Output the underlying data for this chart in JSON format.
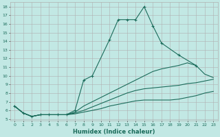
{
  "xlabel": "Humidex (Indice chaleur)",
  "background_color": "#c2e8e4",
  "grid_color": "#b0b0b0",
  "line_color": "#1a6b5a",
  "xlim": [
    -0.5,
    23.5
  ],
  "ylim": [
    4.8,
    18.5
  ],
  "xticks": [
    0,
    1,
    2,
    3,
    4,
    5,
    6,
    7,
    8,
    9,
    10,
    11,
    12,
    13,
    14,
    15,
    16,
    17,
    18,
    19,
    20,
    21,
    22,
    23
  ],
  "yticks": [
    5,
    6,
    7,
    8,
    9,
    10,
    11,
    12,
    13,
    14,
    15,
    16,
    17,
    18
  ],
  "series": [
    {
      "x": [
        0,
        1,
        2,
        3,
        4,
        5,
        6,
        7,
        8,
        9,
        11,
        12,
        13,
        14,
        15,
        16,
        17,
        19,
        21
      ],
      "y": [
        6.5,
        5.7,
        5.3,
        5.5,
        5.5,
        5.5,
        5.5,
        6.0,
        9.5,
        10.0,
        14.2,
        16.5,
        16.5,
        16.5,
        18.0,
        15.8,
        13.8,
        12.4,
        11.2
      ],
      "marker": true
    },
    {
      "x": [
        0,
        1,
        2,
        3,
        4,
        5,
        6,
        7,
        8,
        9,
        10,
        11,
        12,
        13,
        14,
        15,
        16,
        17,
        18,
        19,
        20,
        21,
        22,
        23
      ],
      "y": [
        6.5,
        5.7,
        5.3,
        5.5,
        5.5,
        5.5,
        5.5,
        5.8,
        6.5,
        7.0,
        7.5,
        8.0,
        8.5,
        9.0,
        9.5,
        10.0,
        10.5,
        10.8,
        11.0,
        11.2,
        11.5,
        11.2,
        10.2,
        9.8
      ],
      "marker": false
    },
    {
      "x": [
        0,
        1,
        2,
        3,
        4,
        5,
        6,
        7,
        8,
        9,
        10,
        11,
        12,
        13,
        14,
        15,
        16,
        17,
        18,
        19,
        20,
        21,
        22,
        23
      ],
      "y": [
        6.5,
        5.7,
        5.3,
        5.5,
        5.5,
        5.5,
        5.5,
        5.7,
        6.0,
        6.4,
        6.8,
        7.2,
        7.6,
        8.0,
        8.3,
        8.5,
        8.6,
        8.7,
        8.8,
        8.9,
        9.1,
        9.2,
        9.4,
        9.6
      ],
      "marker": false
    },
    {
      "x": [
        0,
        1,
        2,
        3,
        4,
        5,
        6,
        7,
        8,
        9,
        10,
        11,
        12,
        13,
        14,
        15,
        16,
        17,
        18,
        19,
        20,
        21,
        22,
        23
      ],
      "y": [
        6.5,
        5.7,
        5.3,
        5.5,
        5.5,
        5.5,
        5.5,
        5.6,
        5.8,
        6.0,
        6.2,
        6.5,
        6.7,
        6.9,
        7.1,
        7.2,
        7.2,
        7.2,
        7.2,
        7.3,
        7.5,
        7.7,
        8.0,
        8.2
      ],
      "marker": false
    }
  ]
}
